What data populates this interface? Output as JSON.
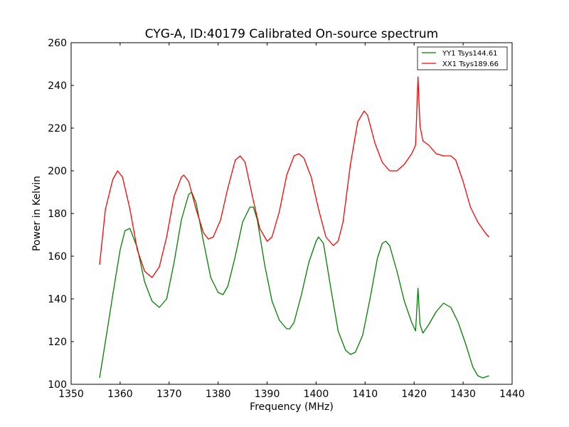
{
  "chart_data": {
    "type": "line",
    "title": "CYG-A, ID:40179 Calibrated On-source spectrum",
    "xlabel": "Frequency (MHz)",
    "ylabel": "Power in Kelvin",
    "xlim": [
      1350,
      1440
    ],
    "ylim": [
      100,
      260
    ],
    "xticks": [
      1350,
      1360,
      1370,
      1380,
      1390,
      1400,
      1410,
      1420,
      1430,
      1440
    ],
    "yticks": [
      100,
      120,
      140,
      160,
      180,
      200,
      220,
      240,
      260
    ],
    "legend_position": "top-right",
    "grid": false,
    "series": [
      {
        "name": "YY1 Tsys144.61",
        "color": "#008000",
        "x": [
          1355.8,
          1357,
          1358.5,
          1360,
          1361,
          1362,
          1363.5,
          1365,
          1366.5,
          1368,
          1369.5,
          1371,
          1372.5,
          1374,
          1374.6,
          1375.5,
          1377,
          1378.5,
          1380,
          1381,
          1382,
          1383.5,
          1385,
          1386.5,
          1387.2,
          1388,
          1389.5,
          1391,
          1392.5,
          1394,
          1394.6,
          1395.5,
          1397,
          1398.5,
          1400,
          1400.5,
          1401.5,
          1403,
          1404.5,
          1406,
          1407,
          1408,
          1409.5,
          1411,
          1412.5,
          1413.5,
          1414.2,
          1415,
          1416.5,
          1418,
          1419.5,
          1420.3,
          1420.8,
          1421.2,
          1421.8,
          1423,
          1424.5,
          1426,
          1427.5,
          1429,
          1430.5,
          1432,
          1433,
          1434,
          1435.3
        ],
        "y": [
          103,
          120,
          142,
          163,
          172,
          173,
          164,
          148,
          139,
          136,
          140,
          157,
          177,
          189,
          190,
          185,
          167,
          150,
          143,
          142,
          146,
          160,
          176,
          183,
          183,
          177,
          156,
          139,
          130,
          126,
          126,
          129,
          142,
          157,
          167,
          169,
          166,
          145,
          125,
          116,
          114,
          115,
          123,
          140,
          159,
          166,
          167,
          165,
          153,
          139,
          129,
          125,
          145,
          128,
          124,
          128,
          134,
          138,
          136,
          129,
          119,
          108,
          104,
          103,
          104
        ]
      },
      {
        "name": "XX1 Tsys189.66",
        "color": "#ff0000",
        "x": [
          1355.8,
          1357,
          1358.5,
          1359.5,
          1360.5,
          1362,
          1363.5,
          1365,
          1366.5,
          1368,
          1369.5,
          1371,
          1372.5,
          1373,
          1374,
          1375.5,
          1377,
          1378,
          1379,
          1380.5,
          1382,
          1383.5,
          1384.5,
          1385.5,
          1387,
          1388.5,
          1390,
          1391,
          1392.5,
          1394,
          1395.5,
          1396.5,
          1397.5,
          1399,
          1400.5,
          1402,
          1403.5,
          1404.5,
          1405.5,
          1407,
          1408.5,
          1409.8,
          1410.5,
          1412,
          1413.5,
          1415,
          1416.5,
          1418,
          1419.5,
          1420.3,
          1420.8,
          1421.2,
          1421.8,
          1423,
          1424.5,
          1426,
          1427.5,
          1428.5,
          1430,
          1431.5,
          1433,
          1434.5,
          1435.3
        ],
        "y": [
          156,
          182,
          196,
          200,
          197,
          182,
          163,
          153,
          150,
          155,
          169,
          188,
          197,
          198,
          195,
          182,
          171,
          168,
          169,
          177,
          192,
          205,
          207,
          204,
          188,
          173,
          167,
          169,
          181,
          198,
          207,
          208,
          206,
          197,
          182,
          169,
          165,
          167,
          176,
          203,
          223,
          228,
          226,
          213,
          204,
          200,
          200,
          203,
          208,
          212,
          244,
          221,
          214,
          212,
          208,
          207,
          207,
          205,
          195,
          183,
          176,
          171,
          169
        ]
      }
    ]
  }
}
